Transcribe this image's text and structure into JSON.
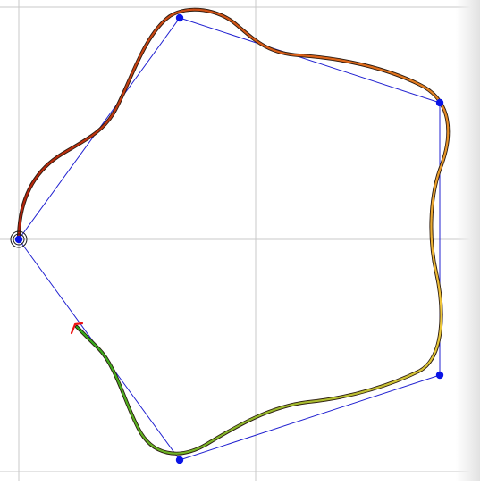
{
  "colors": {
    "background": "#ffffff",
    "grid": "#c8c8c8",
    "control_polygon": "#2020d0",
    "control_point": "#0a14e6",
    "start_marker": "#1a1a1a",
    "arrow": "#ee1111",
    "curve_start": "#b01e0a",
    "curve_mid1": "#e06a1a",
    "curve_mid2": "#f0c83a",
    "curve_end": "#2ea81a"
  },
  "icons": {
    "start_marker": "circled-dot-icon",
    "direction_arrow": "arrow-head-icon",
    "control_point": "dot-icon"
  },
  "controls": {
    "point_count": 5
  }
}
